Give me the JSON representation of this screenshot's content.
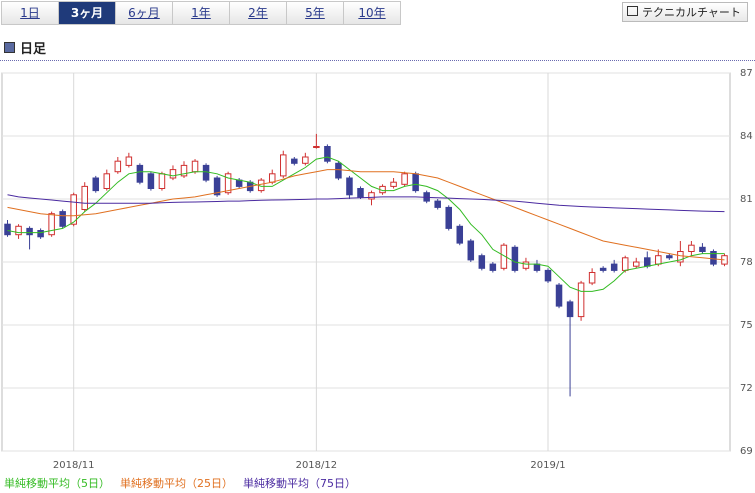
{
  "tabs": [
    "1日",
    "3ヶ月",
    "6ヶ月",
    "1年",
    "2年",
    "5年",
    "10年"
  ],
  "selected_tab": 1,
  "button": "テクニカルチャート",
  "heading": "日足",
  "chart_data": {
    "type": "candlestick",
    "open": [
      79.8,
      79.3,
      79.6,
      79.5,
      79.3,
      80.4,
      79.8,
      80.5,
      82.0,
      81.5,
      82.3,
      82.6,
      82.6,
      82.2,
      81.5,
      82.0,
      82.1,
      82.3,
      82.6,
      82.0,
      81.3,
      81.9,
      81.8,
      81.4,
      81.8,
      82.1,
      82.9,
      82.7,
      83.5,
      83.5,
      82.7,
      82.0,
      81.5,
      81.0,
      81.3,
      81.6,
      81.7,
      82.2,
      81.3,
      80.9,
      80.6,
      79.7,
      79.0,
      78.3,
      77.9,
      77.7,
      78.7,
      77.7,
      77.9,
      77.6,
      76.9,
      76.1,
      75.4,
      77.0,
      77.7,
      77.9,
      77.6,
      77.8,
      78.2,
      77.9,
      78.3,
      78.0,
      78.5,
      78.7,
      78.5,
      77.9
    ],
    "high": [
      80.0,
      79.8,
      79.7,
      79.6,
      80.4,
      80.5,
      81.3,
      81.8,
      82.1,
      82.4,
      83.0,
      83.2,
      82.7,
      82.3,
      82.3,
      82.6,
      82.8,
      82.9,
      82.7,
      82.1,
      82.3,
      82.0,
      81.9,
      82.0,
      82.4,
      83.3,
      83.0,
      83.2,
      84.1,
      83.6,
      82.8,
      82.1,
      81.6,
      81.4,
      81.7,
      82.0,
      82.3,
      82.3,
      81.4,
      81.0,
      80.7,
      79.8,
      79.1,
      78.4,
      78.0,
      78.9,
      78.8,
      78.2,
      78.1,
      77.7,
      77.0,
      76.2,
      77.1,
      77.7,
      77.8,
      78.1,
      78.3,
      78.2,
      78.5,
      78.6,
      78.4,
      79.0,
      79.0,
      78.9,
      78.6,
      78.4
    ],
    "low": [
      79.2,
      79.1,
      78.6,
      79.1,
      79.2,
      79.6,
      79.7,
      80.4,
      81.3,
      81.4,
      82.2,
      82.5,
      81.7,
      81.4,
      81.4,
      81.9,
      82.0,
      82.2,
      81.8,
      81.1,
      81.2,
      81.5,
      81.3,
      81.3,
      81.7,
      82.0,
      82.6,
      82.6,
      83.4,
      82.7,
      81.9,
      81.0,
      81.0,
      80.7,
      81.2,
      81.5,
      81.6,
      81.3,
      80.8,
      80.5,
      79.5,
      78.8,
      78.0,
      77.6,
      77.5,
      77.6,
      77.5,
      77.6,
      77.5,
      77.0,
      75.8,
      71.6,
      75.2,
      76.9,
      77.5,
      77.5,
      77.5,
      77.7,
      77.7,
      77.8,
      78.1,
      77.8,
      78.3,
      78.4,
      77.8,
      77.8
    ],
    "close": [
      79.3,
      79.7,
      79.3,
      79.2,
      80.3,
      79.7,
      81.2,
      81.6,
      81.4,
      82.2,
      82.8,
      83.0,
      81.8,
      81.5,
      82.2,
      82.4,
      82.6,
      82.8,
      81.9,
      81.2,
      82.2,
      81.6,
      81.4,
      81.9,
      82.2,
      83.1,
      82.7,
      83.0,
      83.5,
      82.8,
      82.0,
      81.2,
      81.1,
      81.3,
      81.6,
      81.8,
      82.2,
      81.4,
      80.9,
      80.6,
      79.6,
      78.9,
      78.1,
      77.7,
      77.6,
      78.8,
      77.6,
      78.0,
      77.6,
      77.1,
      75.9,
      75.4,
      77.0,
      77.5,
      77.6,
      77.6,
      78.2,
      78.0,
      77.8,
      78.3,
      78.2,
      78.5,
      78.8,
      78.5,
      77.9,
      78.3
    ],
    "up_color": "#d03030",
    "down_color": "#3a4096",
    "series": [
      {
        "name": "単純移動平均（5日）",
        "color": "#33bb22",
        "values": [
          79.5,
          79.4,
          79.4,
          79.4,
          79.5,
          79.6,
          79.9,
          80.4,
          80.8,
          81.3,
          81.8,
          82.2,
          82.3,
          82.3,
          82.2,
          82.1,
          82.2,
          82.3,
          82.3,
          82.2,
          82.0,
          81.9,
          81.8,
          81.6,
          81.6,
          81.9,
          82.2,
          82.5,
          82.9,
          83.0,
          82.8,
          82.4,
          82.0,
          81.6,
          81.4,
          81.4,
          81.6,
          81.7,
          81.6,
          81.4,
          81.0,
          80.5,
          79.8,
          79.3,
          78.6,
          78.3,
          78.0,
          77.9,
          77.9,
          77.8,
          77.3,
          76.8,
          76.6,
          76.6,
          76.7,
          77.1,
          77.6,
          77.7,
          77.8,
          77.9,
          78.0,
          78.1,
          78.3,
          78.4,
          78.4,
          78.4
        ]
      },
      {
        "name": "単純移動平均（25日）",
        "color": "#e07020",
        "values": [
          80.6,
          80.5,
          80.4,
          80.3,
          80.25,
          80.2,
          80.2,
          80.25,
          80.3,
          80.4,
          80.5,
          80.6,
          80.7,
          80.8,
          80.9,
          81.0,
          81.05,
          81.1,
          81.2,
          81.3,
          81.4,
          81.5,
          81.6,
          81.7,
          81.8,
          81.95,
          82.1,
          82.2,
          82.3,
          82.4,
          82.4,
          82.35,
          82.3,
          82.3,
          82.3,
          82.3,
          82.25,
          82.2,
          82.1,
          82.0,
          81.8,
          81.6,
          81.4,
          81.2,
          81.0,
          80.8,
          80.6,
          80.4,
          80.2,
          80.0,
          79.8,
          79.6,
          79.4,
          79.2,
          79.0,
          78.9,
          78.8,
          78.7,
          78.6,
          78.5,
          78.4,
          78.3,
          78.25,
          78.2,
          78.15,
          78.1
        ]
      },
      {
        "name": "単純移動平均（75日）",
        "color": "#4a2aa0",
        "values": [
          81.2,
          81.1,
          81.05,
          81.0,
          80.95,
          80.9,
          80.85,
          80.8,
          80.8,
          80.8,
          80.8,
          80.8,
          80.8,
          80.8,
          80.82,
          80.84,
          80.85,
          80.86,
          80.87,
          80.88,
          80.9,
          80.9,
          80.92,
          80.94,
          80.95,
          80.96,
          80.97,
          80.98,
          81.0,
          81.0,
          81.02,
          81.04,
          81.06,
          81.08,
          81.1,
          81.1,
          81.1,
          81.1,
          81.08,
          81.06,
          81.04,
          81.02,
          81.0,
          80.98,
          80.95,
          80.92,
          80.9,
          80.85,
          80.8,
          80.75,
          80.7,
          80.67,
          80.64,
          80.62,
          80.6,
          80.58,
          80.56,
          80.54,
          80.52,
          80.5,
          80.48,
          80.46,
          80.44,
          80.42,
          80.41,
          80.4
        ]
      }
    ],
    "xlim": [
      -0.5,
      65.5
    ],
    "xticks": [
      {
        "value": 6,
        "label": "2018/11"
      },
      {
        "value": 28,
        "label": "2018/12"
      },
      {
        "value": 49,
        "label": "2019/1"
      }
    ],
    "ylim": [
      69,
      87
    ],
    "yticks": [
      69,
      72,
      75,
      78,
      81,
      84,
      87
    ],
    "grid": true
  }
}
